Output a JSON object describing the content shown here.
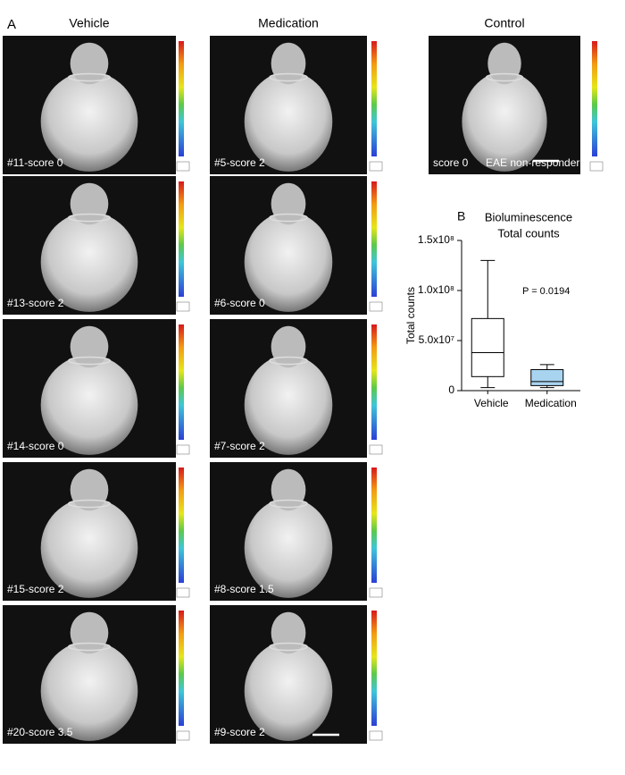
{
  "panel_a": {
    "label": "A",
    "columns": [
      {
        "title": "Vehicle",
        "images": [
          {
            "label": "#11-score 0"
          },
          {
            "label": "#13-score 2"
          },
          {
            "label": "#14-score 0"
          },
          {
            "label": "#15-score 2"
          },
          {
            "label": "#20-score 3.5"
          }
        ]
      },
      {
        "title": "Medication",
        "images": [
          {
            "label": "#5-score 2"
          },
          {
            "label": "#6-score 0"
          },
          {
            "label": "#7-score 2"
          },
          {
            "label": "#8-score 1.5"
          },
          {
            "label": "#9-score 2"
          }
        ]
      },
      {
        "title": "Control",
        "images": [
          {
            "label": "score 0",
            "note": "EAE non-responder"
          }
        ]
      }
    ]
  },
  "chart_data": {
    "type": "box",
    "panel_label": "B",
    "title": "Bioluminescence",
    "subtitle": "Total counts",
    "y_label": "Total counts",
    "annotation": "P = 0.0194",
    "categories": [
      "Vehicle",
      "Medication"
    ],
    "boxes": [
      {
        "min": 3000000,
        "q1": 14000000,
        "median": 38000000,
        "q3": 72000000,
        "max": 130000000,
        "color": "#ffffff"
      },
      {
        "min": 3000000,
        "q1": 5000000,
        "median": 9000000,
        "q3": 21000000,
        "max": 26000000,
        "color": "#a9d4f0"
      }
    ],
    "ylim": [
      0,
      150000000
    ],
    "yticks": [
      0,
      {
        "value": 50000000,
        "label": "5.0x10⁷"
      },
      {
        "value": 100000000,
        "label": "1.0x10⁸"
      },
      {
        "value": 150000000,
        "label": "1.5x10⁸"
      }
    ]
  }
}
